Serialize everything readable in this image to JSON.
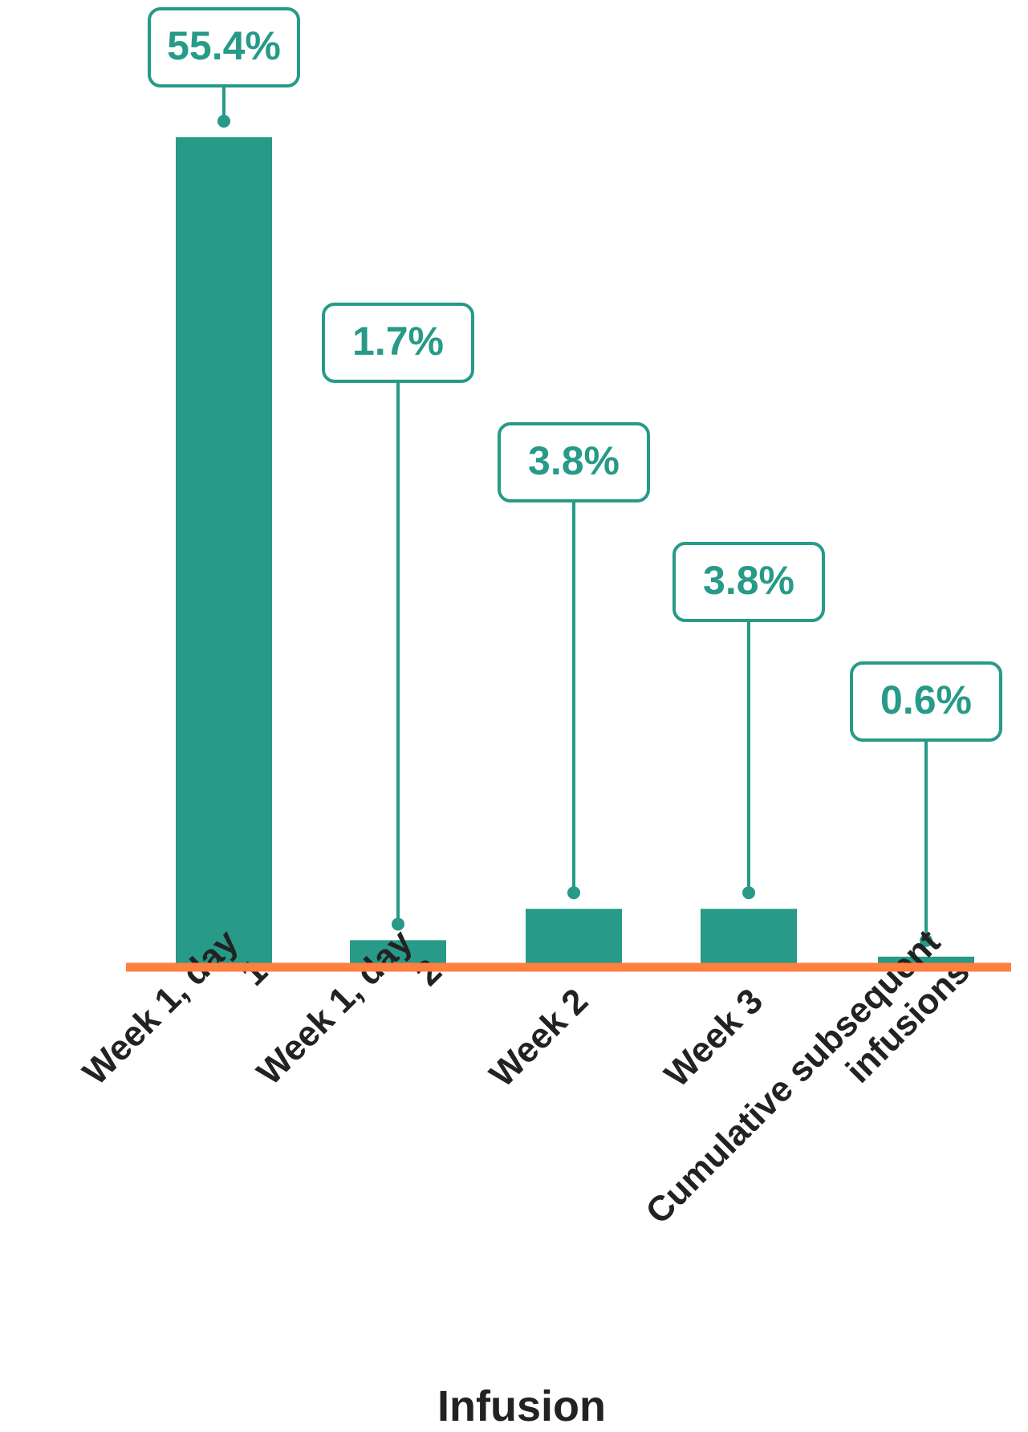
{
  "chart_data": {
    "type": "bar",
    "categories": [
      "Week 1, day 1",
      "Week 1, day 2",
      "Week 2",
      "Week 3",
      "Cumulative subsequent infusions"
    ],
    "values": [
      55.4,
      1.7,
      3.8,
      3.8,
      0.6
    ],
    "value_labels": [
      "55.4%",
      "1.7%",
      "3.8%",
      "3.8%",
      "0.6%"
    ],
    "x_label": "Infusion",
    "color": "#279a88",
    "baseline_color": "#ff7f3f"
  }
}
